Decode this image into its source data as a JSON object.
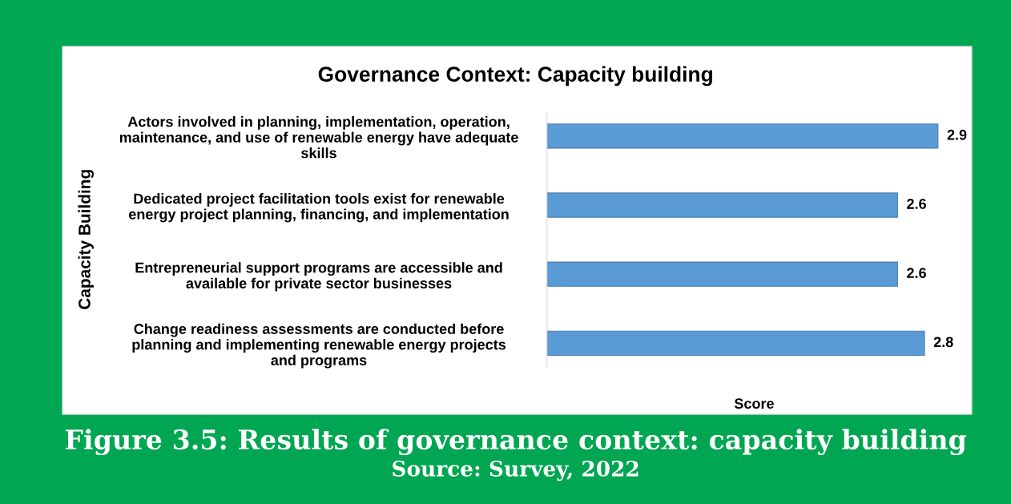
{
  "chart_data": {
    "type": "bar",
    "orientation": "horizontal",
    "title": "Governance Context: Capacity building",
    "xlabel": "Score",
    "ylabel": "Capacity Building",
    "categories": [
      "Actors involved in planning, implementation, operation,\nmaintenance, and use of renewable energy have adequate\nskills",
      "Dedicated project facilitation tools exist for renewable\nenergy project planning, financing, and implementation",
      "Entrepreneurial support programs are accessible and\navailable for private sector businesses",
      "Change readiness assessments are conducted before\nplanning and implementing renewable energy projects\nand programs"
    ],
    "values": [
      2.9,
      2.6,
      2.6,
      2.8
    ],
    "color": "#5b9bd5",
    "data_labels": true,
    "tick_labels": "y",
    "annotations": [
      "Figure 3.5: Results of governance context: capacity building",
      "Source: Survey, 2022"
    ]
  }
}
